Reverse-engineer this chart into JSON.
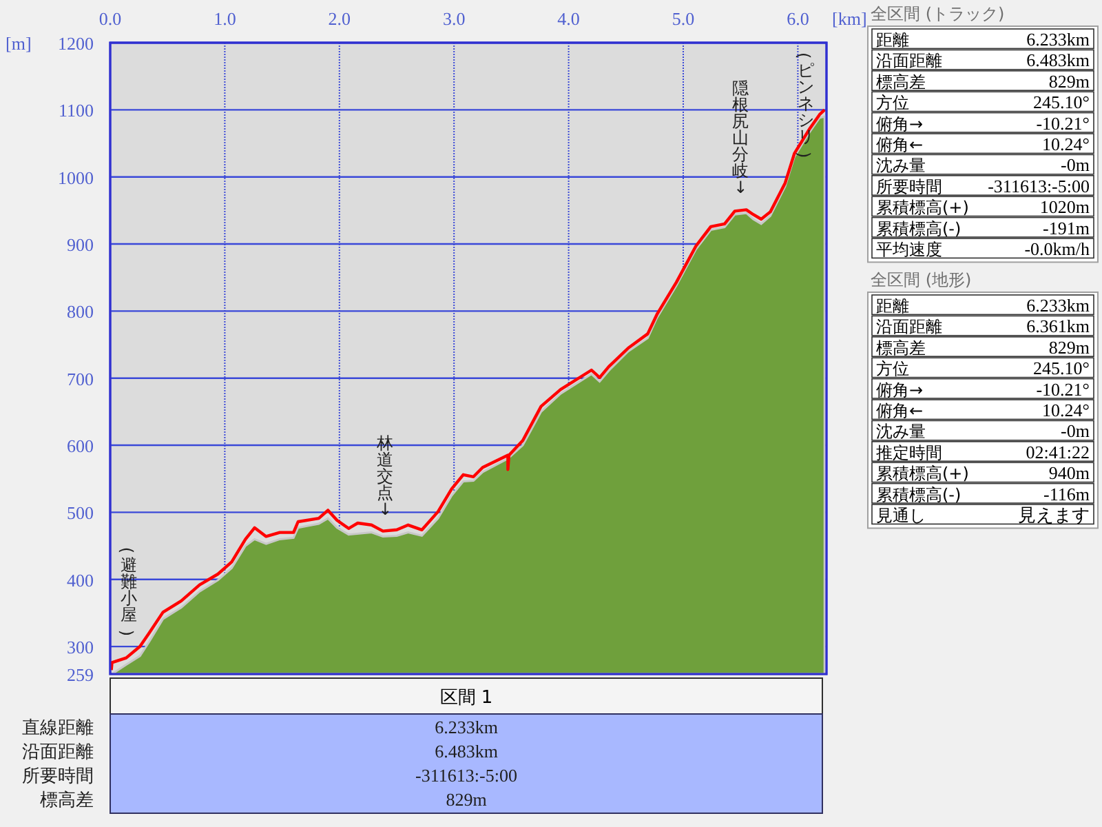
{
  "chart_data": [
    {
      "type": "area",
      "xlabel": "[km]",
      "ylabel": "[m]",
      "xlim": [
        0,
        6.25
      ],
      "ylim": [
        259,
        1200
      ],
      "xticks": [
        {
          "value": 0,
          "label": "0.0"
        },
        {
          "value": 1,
          "label": "1.0"
        },
        {
          "value": 2,
          "label": "2.0"
        },
        {
          "value": 3,
          "label": "3.0"
        },
        {
          "value": 4,
          "label": "4.0"
        },
        {
          "value": 5,
          "label": "5.0"
        },
        {
          "value": 6,
          "label": "6.0"
        }
      ],
      "yticks": [
        259,
        300,
        400,
        500,
        600,
        700,
        800,
        900,
        1000,
        1100,
        1200
      ],
      "grid": true,
      "series": [
        {
          "type": "area",
          "color": "#6fa03c",
          "x": [
            0.016,
            0.14,
            0.26,
            0.34,
            0.46,
            0.62,
            0.78,
            0.94,
            1.06,
            1.18,
            1.26,
            1.36,
            1.48,
            1.6,
            1.64,
            1.82,
            1.9,
            1.98,
            2.08,
            2.28,
            2.38,
            2.5,
            2.6,
            2.72,
            2.86,
            2.98,
            3.08,
            3.17,
            3.25,
            3.47,
            3.6,
            3.76,
            3.93,
            4.2,
            4.27,
            4.35,
            4.52,
            4.69,
            4.77,
            4.94,
            5.11,
            5.24,
            5.36,
            5.45,
            5.55,
            5.61,
            5.68,
            5.76,
            5.89,
            5.97,
            6.1,
            6.19,
            6.233
          ],
          "values": [
            259,
            273,
            286,
            307,
            341,
            358,
            382,
            399,
            417,
            450,
            460,
            453,
            460,
            462,
            477,
            483,
            491,
            477,
            467,
            470,
            464,
            465,
            470,
            465,
            491,
            525,
            546,
            547,
            560,
            580,
            600,
            650,
            677,
            706,
            695,
            711,
            740,
            760,
            790,
            838,
            892,
            921,
            925,
            944,
            946,
            937,
            930,
            942,
            986,
            1030,
            1066,
            1088,
            1090
          ]
        },
        {
          "type": "line",
          "color": "#ff0000",
          "x": [
            0.01,
            0.016,
            0.14,
            0.26,
            0.34,
            0.46,
            0.62,
            0.78,
            0.94,
            1.06,
            1.18,
            1.26,
            1.36,
            1.48,
            1.6,
            1.64,
            1.82,
            1.9,
            1.98,
            2.08,
            2.16,
            2.28,
            2.38,
            2.5,
            2.6,
            2.72,
            2.86,
            2.98,
            3.08,
            3.17,
            3.25,
            3.47,
            3.47,
            3.48,
            3.6,
            3.76,
            3.93,
            4.2,
            4.27,
            4.35,
            4.52,
            4.69,
            4.77,
            4.94,
            5.11,
            5.24,
            5.36,
            5.45,
            5.55,
            5.61,
            5.68,
            5.76,
            5.89,
            5.97,
            6.1,
            6.19,
            6.233
          ],
          "values": [
            265,
            276,
            283,
            300,
            320,
            351,
            368,
            392,
            408,
            426,
            460,
            477,
            464,
            470,
            470,
            486,
            491,
            503,
            488,
            476,
            484,
            481,
            472,
            474,
            481,
            474,
            501,
            535,
            556,
            553,
            567,
            585,
            564,
            585,
            607,
            658,
            683,
            712,
            701,
            717,
            745,
            766,
            795,
            843,
            897,
            926,
            930,
            949,
            951,
            944,
            937,
            948,
            991,
            1035,
            1071,
            1093,
            1100
          ]
        }
      ],
      "annotations": [
        {
          "text": "(避難小屋)",
          "x": 0.16,
          "y": 290
        },
        {
          "text": "林道交点↓",
          "x": 2.4,
          "y": 472
        },
        {
          "text": "隠根尻山分岐↓",
          "x": 5.5,
          "y": 951
        },
        {
          "text": "(ピンネシリ)",
          "x": 6.19,
          "y": 1093
        }
      ]
    },
    {
      "type": "other",
      "title": "全区間 (トラック)",
      "annotations": [
        "距離",
        "6.233km",
        "沿面距離",
        "6.483km",
        "標高差",
        "829m",
        "方位",
        "245.10°",
        "俯角→",
        "-10.21°",
        "俯角←",
        "10.24°",
        "沈み量",
        "-0m",
        "所要時間",
        "-311613:-5:00",
        "累積標高(+)",
        "1020m",
        "累積標高(-)",
        "-191m",
        "平均速度",
        "-0.0km/h"
      ]
    },
    {
      "type": "other",
      "title": "全区間 (地形)",
      "annotations": [
        "距離",
        "6.233km",
        "沿面距離",
        "6.361km",
        "標高差",
        "829m",
        "方位",
        "245.10°",
        "俯角→",
        "-10.21°",
        "俯角←",
        "10.24°",
        "沈み量",
        "-0m",
        "推定時間",
        "02:41:22",
        "累積標高(+)",
        "940m",
        "累積標高(-)",
        "-116m",
        "見通し",
        "見えます"
      ]
    },
    {
      "type": "other",
      "title": "区間 1",
      "annotations": [
        "直線距離",
        "6.233km",
        "沿面距離",
        "6.483km",
        "所要時間",
        "-311613:-5:00",
        "標高差",
        "829m"
      ]
    }
  ]
}
